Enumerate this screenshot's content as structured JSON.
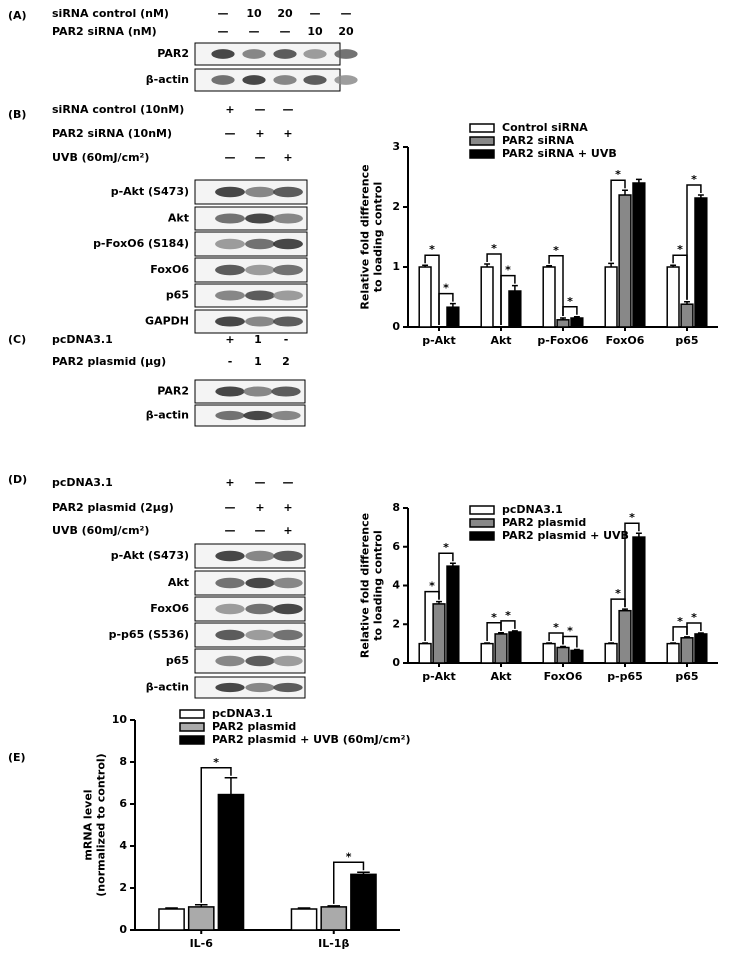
{
  "blots": [
    {
      "label": "(A)",
      "conditions": [
        {
          "name": "siRNA control (nM)",
          "lanes": [
            "—",
            "10",
            "20",
            "—",
            "—"
          ]
        },
        {
          "name": "PAR2 siRNA (nM)",
          "lanes": [
            "—",
            "—",
            "—",
            "10",
            "20"
          ]
        }
      ],
      "bands": [
        "PAR2",
        "β-actin"
      ]
    },
    {
      "label": "(B)",
      "conditions": [
        {
          "name": "siRNA control (10nM)",
          "lanes": [
            "+",
            "—",
            "—"
          ]
        },
        {
          "name": "PAR2 siRNA (10nM)",
          "lanes": [
            "—",
            "+",
            "+"
          ]
        },
        {
          "name": "UVB (60mJ/cm²)",
          "lanes": [
            "—",
            "—",
            "+"
          ]
        }
      ],
      "bands": [
        "p-Akt (S473)",
        "Akt",
        "p-FoxO6 (S184)",
        "FoxO6",
        "p65",
        "GAPDH"
      ]
    },
    {
      "label": "(C)",
      "conditions": [
        {
          "name": "pcDNA3.1",
          "lanes": [
            "+",
            "1",
            "-"
          ]
        },
        {
          "name": "PAR2 plasmid (μg)",
          "lanes": [
            "-",
            "1",
            "2"
          ]
        }
      ],
      "bands": [
        "PAR2",
        "β-actin"
      ]
    },
    {
      "label": "(D)",
      "conditions": [
        {
          "name": "pcDNA3.1",
          "lanes": [
            "+",
            "—",
            "—"
          ]
        },
        {
          "name": "PAR2 plasmid (2μg)",
          "lanes": [
            "—",
            "+",
            "+"
          ]
        },
        {
          "name": "UVB (60mJ/cm²)",
          "lanes": [
            "—",
            "—",
            "+"
          ]
        }
      ],
      "bands": [
        "p-Akt (S473)",
        "Akt",
        "FoxO6",
        "p-p65 (S536)",
        "p65",
        "β-actin"
      ]
    }
  ],
  "chart_data": [
    {
      "type": "bar",
      "ylabel": [
        "Relative fold difference",
        "to loading control"
      ],
      "categories": [
        "p-Akt",
        "Akt",
        "p-FoxO6",
        "FoxO6",
        "p65"
      ],
      "series": [
        {
          "name": "Control siRNA",
          "color": "#ffffff",
          "values": [
            1,
            1,
            1,
            1,
            1
          ],
          "errors": [
            0.03,
            0.05,
            0.02,
            0.06,
            0.03
          ]
        },
        {
          "name": "PAR2 siRNA",
          "color": "#888888",
          "values": [
            0,
            0,
            0.12,
            2.2,
            0.38
          ],
          "errors": [
            0,
            0,
            0.03,
            0.08,
            0.04
          ]
        },
        {
          "name": "PAR2 siRNA + UVB",
          "color": "#000000",
          "values": [
            0.33,
            0.6,
            0.15,
            2.4,
            2.15
          ],
          "errors": [
            0.06,
            0.09,
            0.02,
            0.06,
            0.05
          ]
        }
      ],
      "ylim": [
        0,
        3
      ],
      "yticks": [
        0,
        1,
        2,
        3
      ],
      "significance": [
        {
          "category": "p-Akt",
          "between": [
            "Control siRNA",
            "PAR2 siRNA"
          ],
          "label": "*"
        },
        {
          "category": "p-Akt",
          "between": [
            "PAR2 siRNA",
            "PAR2 siRNA + UVB"
          ],
          "label": "*"
        },
        {
          "category": "Akt",
          "between": [
            "Control siRNA",
            "PAR2 siRNA"
          ],
          "label": "*"
        },
        {
          "category": "Akt",
          "between": [
            "PAR2 siRNA",
            "PAR2 siRNA + UVB"
          ],
          "label": "*"
        },
        {
          "category": "p-FoxO6",
          "between": [
            "Control siRNA",
            "PAR2 siRNA"
          ],
          "label": "*"
        },
        {
          "category": "p-FoxO6",
          "between": [
            "PAR2 siRNA",
            "PAR2 siRNA + UVB"
          ],
          "label": "*"
        },
        {
          "category": "FoxO6",
          "between": [
            "Control siRNA",
            "PAR2 siRNA"
          ],
          "label": "*"
        },
        {
          "category": "p65",
          "between": [
            "Control siRNA",
            "PAR2 siRNA"
          ],
          "label": "*"
        },
        {
          "category": "p65",
          "between": [
            "PAR2 siRNA",
            "PAR2 siRNA + UVB"
          ],
          "label": "*"
        }
      ]
    },
    {
      "type": "bar",
      "ylabel": [
        "Relative fold difference",
        "to loading control"
      ],
      "categories": [
        "p-Akt",
        "Akt",
        "FoxO6",
        "p-p65",
        "p65"
      ],
      "series": [
        {
          "name": "pcDNA3.1",
          "color": "#ffffff",
          "values": [
            1,
            1,
            1,
            1,
            1
          ],
          "errors": [
            0.03,
            0.03,
            0.03,
            0.03,
            0.03
          ]
        },
        {
          "name": "PAR2 plasmid",
          "color": "#888888",
          "values": [
            3.05,
            1.5,
            0.8,
            2.7,
            1.3
          ],
          "errors": [
            0.12,
            0.06,
            0.05,
            0.08,
            0.05
          ]
        },
        {
          "name": "PAR2 plasmid + UVB",
          "color": "#000000",
          "values": [
            5.0,
            1.6,
            0.65,
            6.5,
            1.5
          ],
          "errors": [
            0.15,
            0.06,
            0.05,
            0.2,
            0.05
          ]
        }
      ],
      "ylim": [
        0,
        8
      ],
      "yticks": [
        0,
        2,
        4,
        6,
        8
      ],
      "significance": [
        {
          "category": "p-Akt",
          "between": [
            "pcDNA3.1",
            "PAR2 plasmid"
          ],
          "label": "*"
        },
        {
          "category": "p-Akt",
          "between": [
            "PAR2 plasmid",
            "PAR2 plasmid + UVB"
          ],
          "label": "*"
        },
        {
          "category": "Akt",
          "between": [
            "pcDNA3.1",
            "PAR2 plasmid"
          ],
          "label": "*"
        },
        {
          "category": "Akt",
          "between": [
            "PAR2 plasmid",
            "PAR2 plasmid + UVB"
          ],
          "label": "*"
        },
        {
          "category": "FoxO6",
          "between": [
            "pcDNA3.1",
            "PAR2 plasmid"
          ],
          "label": "*"
        },
        {
          "category": "FoxO6",
          "between": [
            "PAR2 plasmid",
            "PAR2 plasmid + UVB"
          ],
          "label": "*"
        },
        {
          "category": "p-p65",
          "between": [
            "pcDNA3.1",
            "PAR2 plasmid"
          ],
          "label": "*"
        },
        {
          "category": "p-p65",
          "between": [
            "PAR2 plasmid",
            "PAR2 plasmid + UVB"
          ],
          "label": "*"
        },
        {
          "category": "p65",
          "between": [
            "pcDNA3.1",
            "PAR2 plasmid"
          ],
          "label": "*"
        },
        {
          "category": "p65",
          "between": [
            "PAR2 plasmid",
            "PAR2 plasmid + UVB"
          ],
          "label": "*"
        }
      ]
    },
    {
      "type": "bar",
      "label": "(E)",
      "ylabel": [
        "mRNA level",
        "(normalized to control)"
      ],
      "categories": [
        "IL-6",
        "IL-1β"
      ],
      "series": [
        {
          "name": "pcDNA3.1",
          "color": "#ffffff",
          "values": [
            1,
            1
          ],
          "errors": [
            0.05,
            0.05
          ]
        },
        {
          "name": "PAR2 plasmid",
          "color": "#aaaaaa",
          "values": [
            1.1,
            1.1
          ],
          "errors": [
            0.1,
            0.05
          ]
        },
        {
          "name": "PAR2 plasmid + UVB (60mJ/cm²)",
          "color": "#000000",
          "values": [
            6.45,
            2.65
          ],
          "errors": [
            0.8,
            0.1
          ]
        }
      ],
      "ylim": [
        0,
        10
      ],
      "yticks": [
        0,
        2,
        4,
        6,
        8,
        10
      ],
      "significance": [
        {
          "category": "IL-6",
          "between": [
            "PAR2 plasmid",
            "PAR2 plasmid + UVB (60mJ/cm²)"
          ],
          "label": "*"
        },
        {
          "category": "IL-1β",
          "between": [
            "PAR2 plasmid",
            "PAR2 plasmid + UVB (60mJ/cm²)"
          ],
          "label": "*"
        }
      ]
    }
  ]
}
